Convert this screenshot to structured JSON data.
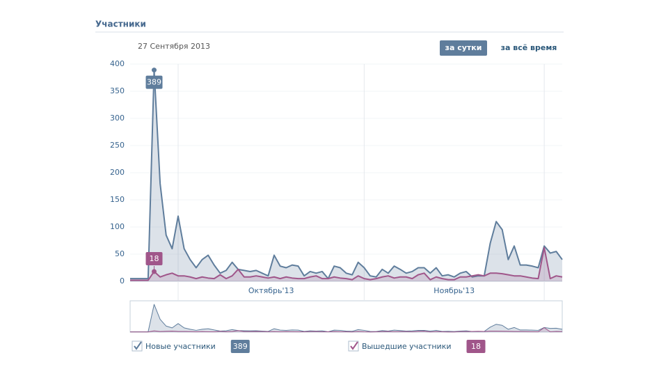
{
  "header": {
    "title": "Участники",
    "date": "27 Сентября 2013",
    "buttons": [
      "за сутки",
      "за всё время"
    ]
  },
  "chart_data": {
    "type": "line",
    "categories": [
      null,
      null,
      null,
      null,
      null,
      null,
      null,
      null,
      null,
      null,
      null,
      null,
      null,
      null,
      null,
      null,
      null,
      null,
      null,
      null,
      null,
      null,
      null,
      null,
      null,
      null,
      null,
      null,
      null,
      null,
      null,
      null,
      null,
      null,
      null,
      null,
      null,
      null,
      null,
      null,
      null,
      null,
      null,
      null,
      null,
      null,
      null,
      null,
      null,
      null,
      null,
      null,
      null,
      null,
      null,
      null,
      null,
      null,
      null,
      null,
      null,
      null,
      null,
      null,
      null,
      null,
      null,
      null,
      null,
      null,
      null,
      null,
      null
    ],
    "month_labels": [
      "Октябрь'13",
      "Ноябрь'13"
    ],
    "series": [
      {
        "name": "Новые участники",
        "color": "#5f7d9c",
        "values": [
          5,
          5,
          5,
          5,
          389,
          180,
          85,
          60,
          120,
          60,
          40,
          25,
          40,
          48,
          30,
          15,
          20,
          35,
          22,
          20,
          18,
          20,
          15,
          10,
          48,
          28,
          25,
          30,
          28,
          10,
          18,
          15,
          18,
          5,
          28,
          25,
          15,
          12,
          35,
          25,
          10,
          8,
          22,
          15,
          28,
          22,
          15,
          18,
          25,
          25,
          15,
          25,
          10,
          12,
          8,
          15,
          18,
          8,
          10,
          10,
          70,
          110,
          95,
          40,
          65,
          30,
          30,
          28,
          25,
          65,
          52,
          55,
          40
        ]
      },
      {
        "name": "Вышедшие участники",
        "color": "#a0568a",
        "values": [
          2,
          2,
          2,
          2,
          18,
          8,
          12,
          15,
          10,
          10,
          8,
          5,
          8,
          6,
          5,
          12,
          5,
          10,
          22,
          8,
          8,
          10,
          8,
          6,
          8,
          5,
          8,
          6,
          5,
          5,
          8,
          10,
          5,
          5,
          8,
          6,
          5,
          3,
          10,
          5,
          3,
          5,
          8,
          10,
          6,
          8,
          8,
          5,
          12,
          15,
          3,
          8,
          5,
          3,
          3,
          8,
          8,
          10,
          12,
          10,
          15,
          15,
          14,
          12,
          10,
          10,
          8,
          6,
          5,
          62,
          5,
          10,
          8
        ]
      }
    ],
    "ylim": [
      0,
      400
    ],
    "yticks": [
      0,
      50,
      100,
      150,
      200,
      250,
      300,
      350,
      400
    ],
    "grid": true
  }
}
